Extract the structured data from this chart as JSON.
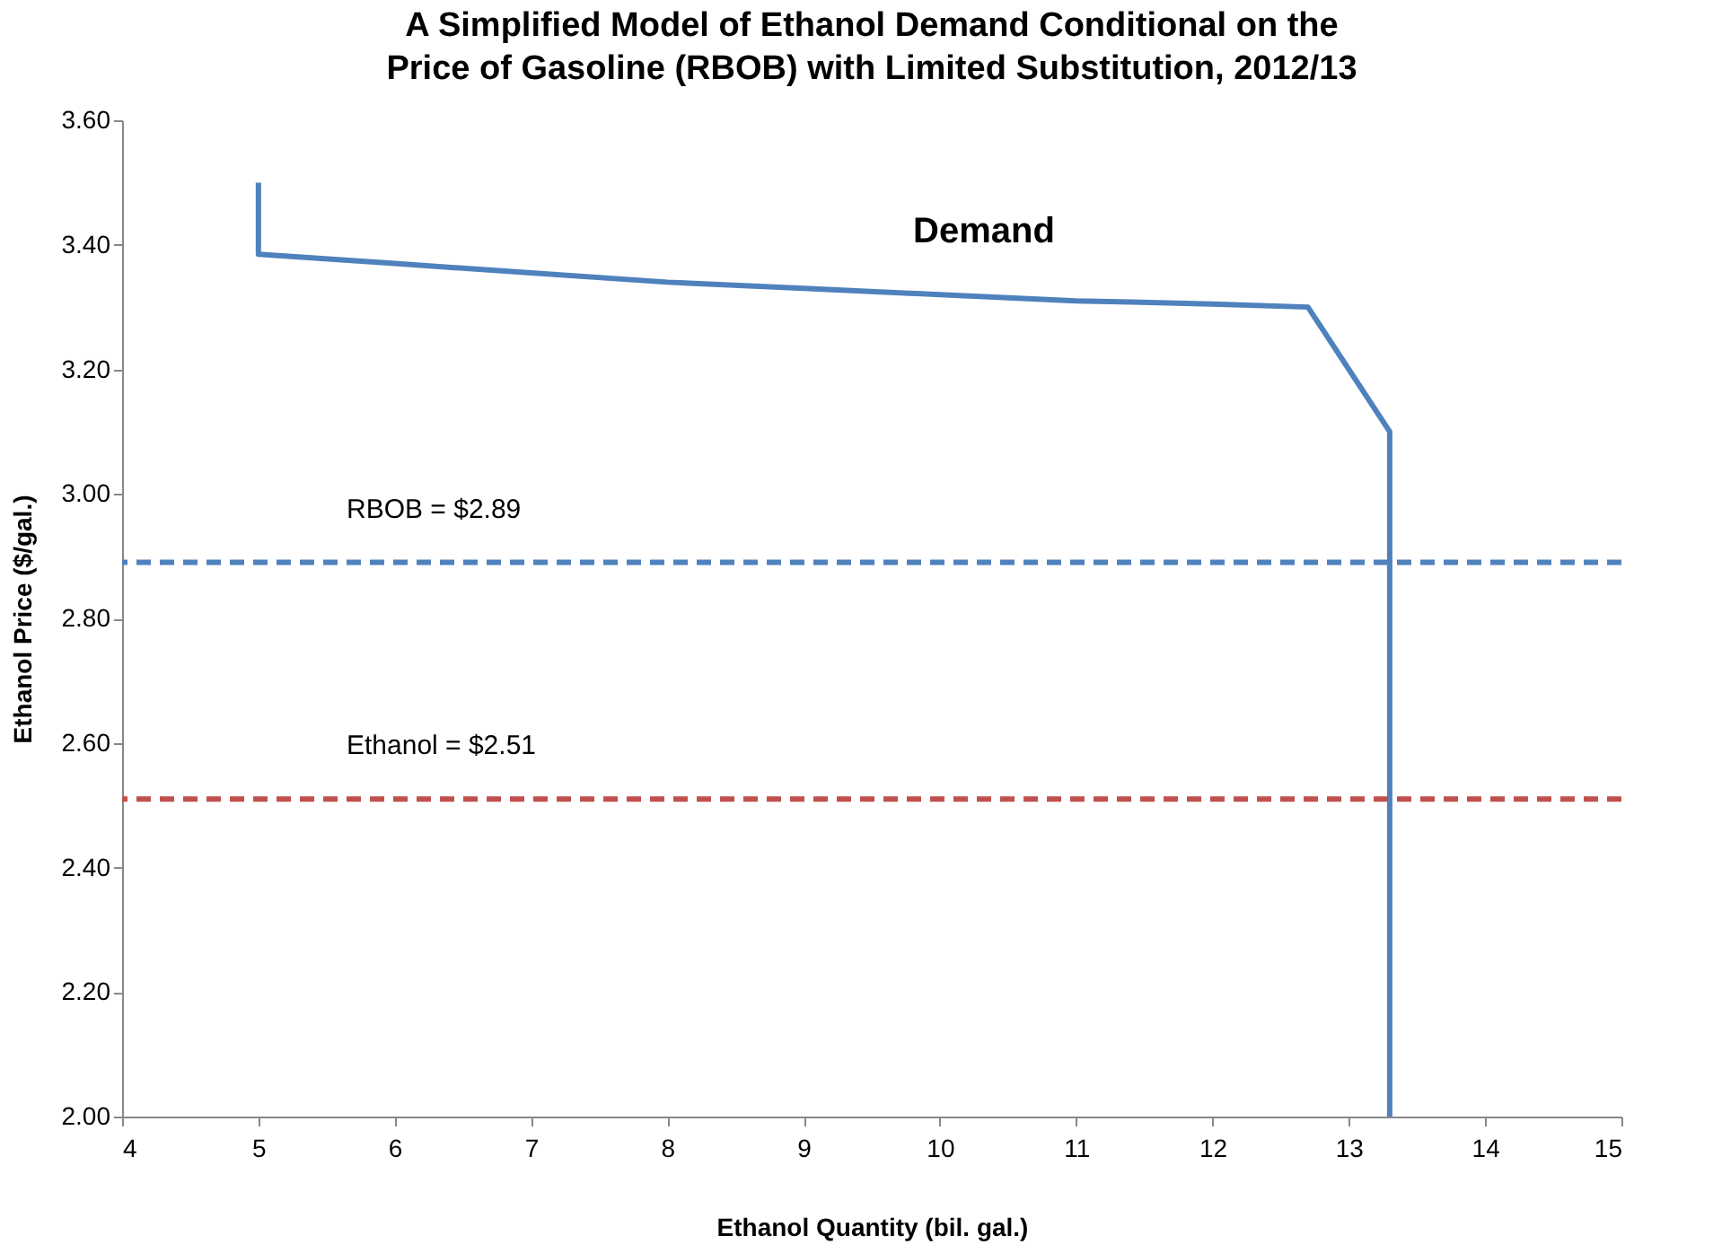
{
  "chart_data": {
    "type": "line",
    "title": "A Simplified Model of Ethanol Demand Conditional on the Price of Gasoline (RBOB) with Limited Substitution, 2012/13",
    "xlabel": "Ethanol Quantity (bil. gal.)",
    "ylabel": "Ethanol Price ($/gal.)",
    "series": [
      {
        "color": "#4f81bd",
        "x": [
          5,
          5,
          6,
          7,
          8,
          9,
          10,
          11,
          12,
          12.7,
          13.3,
          13.3
        ],
        "values": [
          3.5,
          3.385,
          3.37,
          3.355,
          3.34,
          3.33,
          3.32,
          3.31,
          3.305,
          3.3,
          3.1,
          2.0
        ]
      }
    ],
    "xlim": [
      4,
      15
    ],
    "xticks": [
      4,
      5,
      6,
      7,
      8,
      9,
      10,
      11,
      12,
      13,
      14,
      15
    ],
    "ylim": [
      2.0,
      3.6
    ],
    "yticks": [
      {
        "value": 2.0,
        "label": "2.00"
      },
      {
        "value": 2.2,
        "label": "2.20"
      },
      {
        "value": 2.4,
        "label": "2.40"
      },
      {
        "value": 2.6,
        "label": "2.60"
      },
      {
        "value": 2.8,
        "label": "2.80"
      },
      {
        "value": 3.0,
        "label": "3.00"
      },
      {
        "value": 3.2,
        "label": "3.20"
      },
      {
        "value": 3.4,
        "label": "3.40"
      },
      {
        "value": 3.6,
        "label": "3.60"
      }
    ],
    "ref_lines": [
      {
        "axis": "y",
        "value": 2.89,
        "label": "RBOB = $2.89",
        "color": "#4f81bd",
        "line_style": "dashed"
      },
      {
        "axis": "y",
        "value": 2.51,
        "label": "Ethanol = $2.51",
        "color": "#c0504d",
        "line_style": "dashed"
      }
    ],
    "annotations": [
      "Demand"
    ],
    "grid": false,
    "marker": "none",
    "line_style": "solid"
  }
}
